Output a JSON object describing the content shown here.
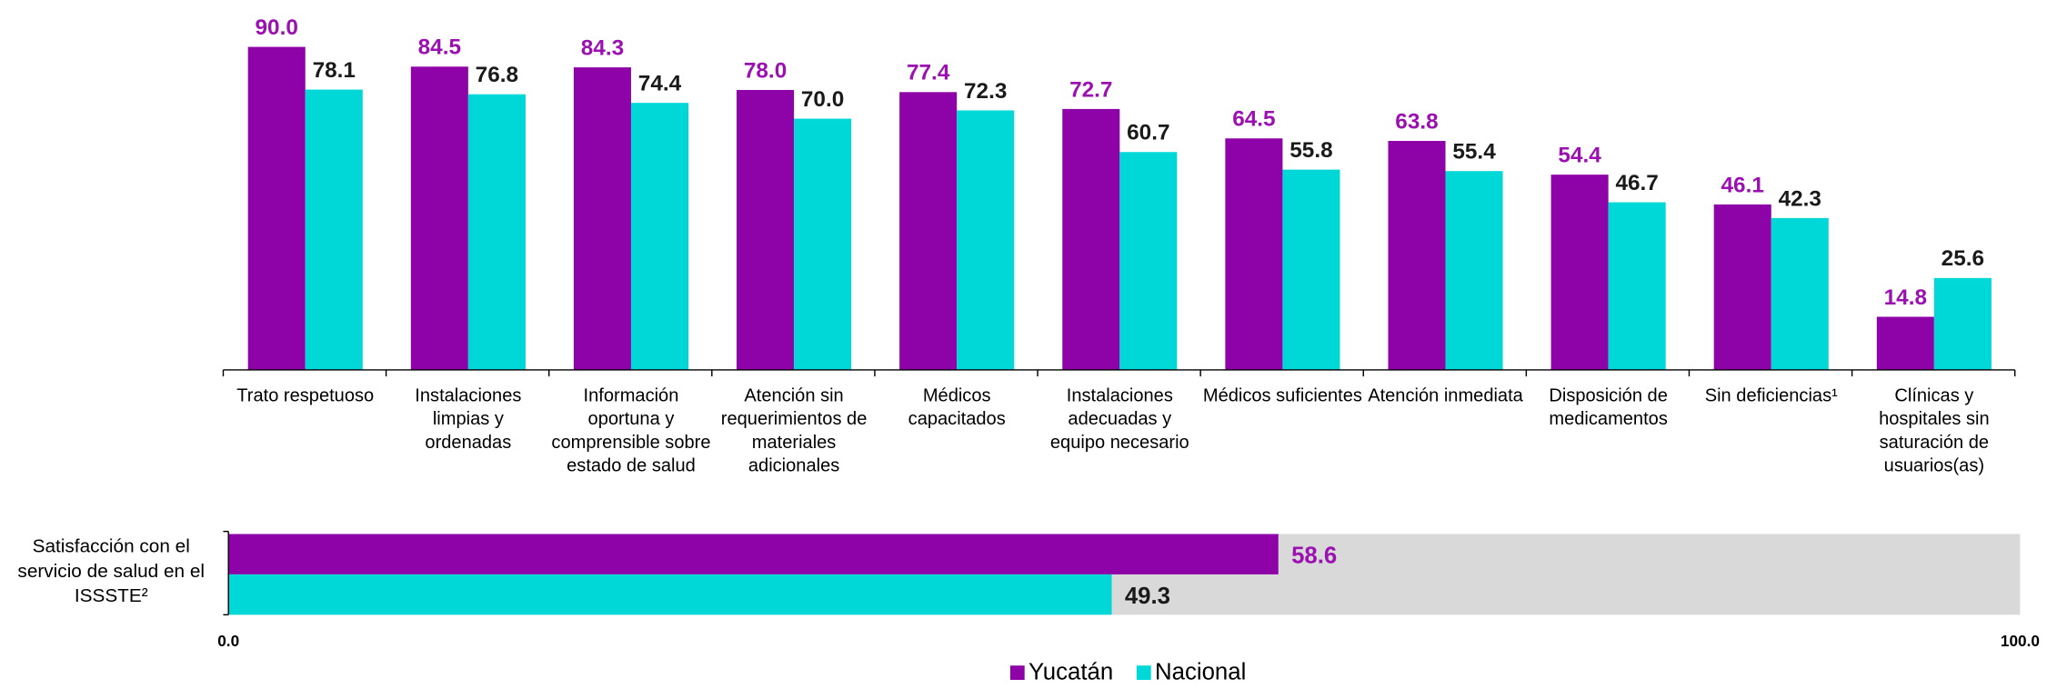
{
  "chart_data": [
    {
      "type": "bar",
      "categories": [
        "Trato respetuoso",
        "Instalaciones limpias y ordenadas",
        "Información oportuna y comprensible sobre estado de salud",
        "Atención sin requerimientos de materiales adicionales",
        "Médicos capacitados",
        "Instalaciones adecuadas y equipo necesario",
        "Médicos suficientes",
        "Atención inmediata",
        "Disposición de medicamentos",
        "Sin deficiencias¹",
        "Clínicas y hospitales sin saturación de usuarios(as)"
      ],
      "series": [
        {
          "name": "Yucatán",
          "color": "#8e03a8",
          "label_color": "#9b10b0",
          "values": [
            90.0,
            84.5,
            84.3,
            78.0,
            77.4,
            72.7,
            64.5,
            63.8,
            54.4,
            46.1,
            14.8
          ],
          "value_labels": [
            "90.0",
            "84.5",
            "84.3",
            "78.0",
            "77.4",
            "72.7",
            "64.5",
            "63.8",
            "54.4",
            "46.1",
            "14.8"
          ]
        },
        {
          "name": "Nacional",
          "color": "#00d8d8",
          "label_color": "#1a1a1a",
          "values": [
            78.1,
            76.8,
            74.4,
            70.0,
            72.3,
            60.7,
            55.8,
            55.4,
            46.7,
            42.3,
            25.6
          ],
          "value_labels": [
            "78.1",
            "76.8",
            "74.4",
            "70.0",
            "72.3",
            "60.7",
            "55.8",
            "55.4",
            "46.7",
            "42.3",
            "25.6"
          ]
        }
      ]
    },
    {
      "type": "hbar",
      "categories": [
        "Satisfacción con el servicio de salud en el ISSSTE²"
      ],
      "series": [
        {
          "color": "#8e03a8",
          "label_color": "#9b10b0",
          "values": [
            58.6
          ],
          "value_labels": [
            "58.6"
          ]
        },
        {
          "color": "#00d8d8",
          "label_color": "#1a1a1a",
          "values": [
            49.3
          ],
          "value_labels": [
            "49.3"
          ]
        }
      ],
      "xlim": [
        0,
        100
      ],
      "xticks": [
        {
          "value": 0,
          "label": "0.0"
        },
        {
          "value": 100,
          "label": "100.0"
        }
      ],
      "background": "#d9d9d9"
    }
  ]
}
